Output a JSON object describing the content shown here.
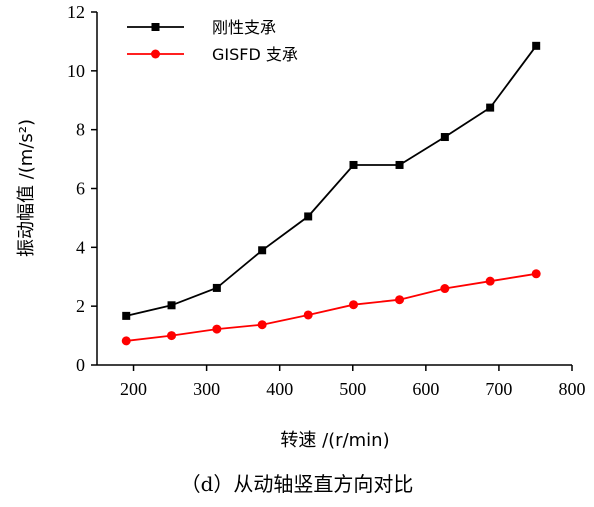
{
  "caption": "（d）从动轴竖直方向对比",
  "chart_data": {
    "type": "line",
    "xlabel": "转速 /(r/min)",
    "ylabel": "振动幅值 /(m/s²)",
    "xlim": [
      150,
      800
    ],
    "ylim": [
      0,
      12
    ],
    "xticks": [
      200,
      300,
      400,
      500,
      600,
      700,
      800
    ],
    "yticks": [
      0,
      2,
      4,
      6,
      8,
      10,
      12
    ],
    "grid": false,
    "legend_position": "top-left",
    "series": [
      {
        "name": "刚性支承",
        "color": "#000000",
        "marker": "square",
        "points": [
          [
            190,
            1.67
          ],
          [
            252,
            2.03
          ],
          [
            314,
            2.62
          ],
          [
            376,
            3.9
          ],
          [
            439,
            5.05
          ],
          [
            501,
            6.8
          ],
          [
            564,
            6.8
          ],
          [
            626,
            7.75
          ],
          [
            688,
            8.75
          ],
          [
            751,
            10.85
          ]
        ]
      },
      {
        "name": "GISFD 支承",
        "color": "#ff0000",
        "marker": "circle",
        "points": [
          [
            190,
            0.82
          ],
          [
            252,
            1.0
          ],
          [
            314,
            1.22
          ],
          [
            376,
            1.37
          ],
          [
            439,
            1.7
          ],
          [
            501,
            2.05
          ],
          [
            564,
            2.22
          ],
          [
            626,
            2.6
          ],
          [
            688,
            2.85
          ],
          [
            751,
            3.1
          ]
        ]
      }
    ]
  }
}
